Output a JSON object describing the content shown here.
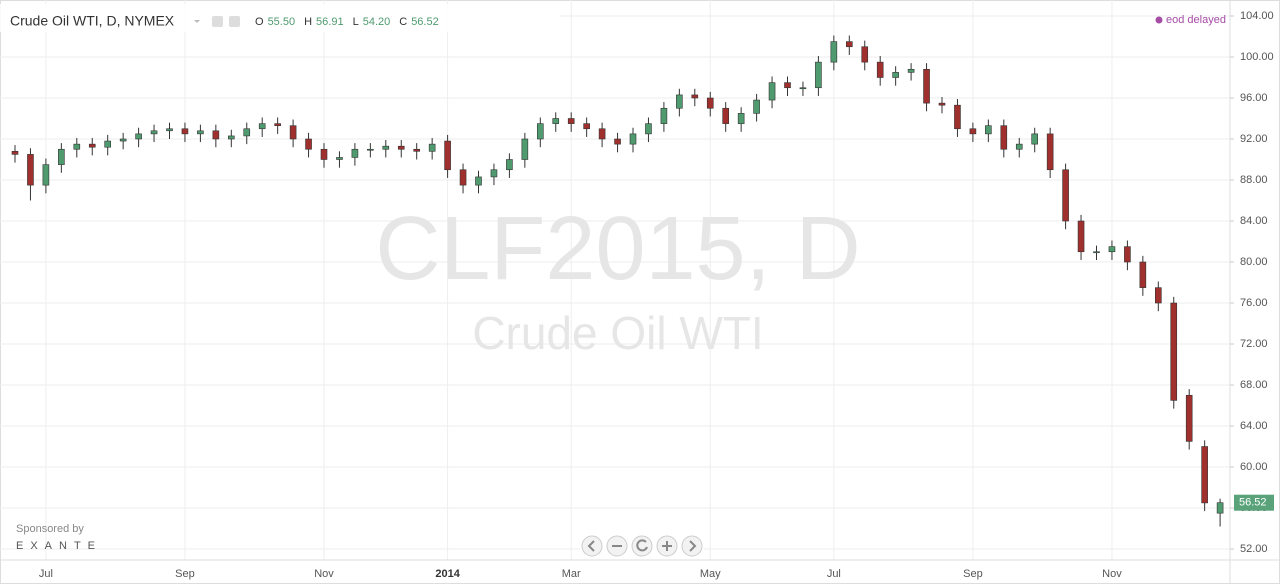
{
  "chart_data": {
    "type": "candlestick",
    "title": "Crude Oil WTI, D, NYMEX",
    "ohlc_legend": [
      {
        "key": "O",
        "text": "55.50"
      },
      {
        "key": "H",
        "text": "56.91"
      },
      {
        "key": "L",
        "text": "54.20"
      },
      {
        "key": "C",
        "text": "56.52"
      }
    ],
    "status": "eod delayed",
    "watermark": "CLF2015, D",
    "watermark_subtitle": "Crude Oil WTI",
    "sponsor_label": "Sponsored by",
    "sponsor": "EXANTE",
    "up_color": "#4f9a6e",
    "down_color": "#a0302e",
    "last_price_color": "#5aa37a",
    "grid": true,
    "categories": [
      null,
      null,
      "Jul",
      null,
      null,
      null,
      null,
      null,
      null,
      null,
      null,
      "Sep",
      null,
      null,
      null,
      null,
      null,
      null,
      null,
      null,
      "Nov",
      null,
      null,
      null,
      null,
      null,
      null,
      null,
      "2014",
      null,
      null,
      null,
      null,
      null,
      null,
      null,
      "Mar",
      null,
      null,
      null,
      null,
      null,
      null,
      null,
      null,
      "May",
      null,
      null,
      null,
      null,
      null,
      null,
      null,
      "Jul",
      null,
      null,
      null,
      null,
      null,
      null,
      null,
      null,
      "Sep",
      null,
      null,
      null,
      null,
      null,
      null,
      null,
      null,
      "Nov",
      null,
      null,
      null,
      null,
      null,
      null,
      null
    ],
    "open": [
      90.8,
      90.5,
      87.5,
      89.5,
      91,
      91.5,
      91.2,
      91.8,
      92,
      92.5,
      92.8,
      93,
      92.5,
      92.8,
      92,
      92.3,
      93,
      93.5,
      93.3,
      92,
      91,
      90,
      90.2,
      91,
      91,
      91.3,
      91,
      90.8,
      91.8,
      89,
      87.5,
      88.3,
      89,
      90,
      92,
      93.5,
      94,
      93.5,
      93,
      92,
      91.5,
      92.5,
      93.5,
      95,
      96.3,
      96,
      95,
      93.5,
      94.5,
      95.8,
      97.5,
      97,
      97,
      99.5,
      101.5,
      101,
      99.5,
      98,
      98.5,
      98.8,
      95.5,
      95.3,
      93,
      92.5,
      93.3,
      91,
      91.5,
      92.5,
      89,
      84,
      81,
      81,
      81.5,
      80,
      77.5,
      76,
      67,
      62,
      55.5
    ],
    "high": [
      91.4,
      91.1,
      90.1,
      91.6,
      92.1,
      92.1,
      92.4,
      92.6,
      93.1,
      93.4,
      93.6,
      93.6,
      93.4,
      93.4,
      92.9,
      93.6,
      94.1,
      94.1,
      93.9,
      92.6,
      91.6,
      90.8,
      91.6,
      91.6,
      91.9,
      91.9,
      91.6,
      92.1,
      92.4,
      89.6,
      88.9,
      89.6,
      90.6,
      92.6,
      94.1,
      94.6,
      94.6,
      94.1,
      93.6,
      92.6,
      93.1,
      94.1,
      95.6,
      96.9,
      96.9,
      96.6,
      95.6,
      95.1,
      96.4,
      98.1,
      98.1,
      97.6,
      100.1,
      102.1,
      102.1,
      101.6,
      100.1,
      99.1,
      99.4,
      99.4,
      96.1,
      95.9,
      93.6,
      93.9,
      93.9,
      92.1,
      93.1,
      93.1,
      89.6,
      84.6,
      81.6,
      82.1,
      82.1,
      80.6,
      78.1,
      76.6,
      67.6,
      62.6,
      56.91
    ],
    "low": [
      89.7,
      86,
      86.7,
      88.7,
      90.2,
      90.4,
      90.4,
      91,
      91.2,
      91.7,
      92,
      91.7,
      91.7,
      91.2,
      91.2,
      91.5,
      92.2,
      92.5,
      91.2,
      90.2,
      89.2,
      89.2,
      89.4,
      90.2,
      90.2,
      90.2,
      90,
      90,
      88.2,
      86.7,
      86.7,
      87.5,
      88.2,
      89.2,
      91.2,
      92.7,
      92.7,
      92.2,
      91.2,
      90.7,
      90.7,
      91.7,
      92.7,
      94.2,
      95.2,
      94.2,
      92.7,
      92.7,
      93.7,
      95,
      96.2,
      96.2,
      96.2,
      98.7,
      100.2,
      98.7,
      97.2,
      97.2,
      97.7,
      94.7,
      94.5,
      92.2,
      91.7,
      91.7,
      90.2,
      90.2,
      90.7,
      88.2,
      83.2,
      80.2,
      80.2,
      80.2,
      79.2,
      76.7,
      75.2,
      65.7,
      61.7,
      55.7,
      54.2
    ],
    "close": [
      90.5,
      87.5,
      89.5,
      91,
      91.5,
      91.2,
      91.8,
      92,
      92.5,
      92.8,
      93,
      92.5,
      92.8,
      92,
      92.3,
      93,
      93.5,
      93.3,
      92,
      91,
      90,
      90.2,
      91,
      91,
      91.3,
      91,
      90.8,
      91.5,
      89,
      87.5,
      88.3,
      89,
      90,
      92,
      93.5,
      94,
      93.5,
      93,
      92,
      91.5,
      92.5,
      93.5,
      95,
      96.3,
      96,
      95,
      93.5,
      94.5,
      95.8,
      97.5,
      97,
      97,
      99.5,
      101.5,
      101,
      99.5,
      98,
      98.5,
      98.8,
      95.5,
      95.3,
      93,
      92.5,
      93.3,
      91,
      91.5,
      92.5,
      89,
      84,
      81,
      81,
      81.5,
      80,
      77.5,
      76,
      66.5,
      62.5,
      56.5,
      56.52
    ],
    "ylim": [
      50.93,
      105.17
    ],
    "yticks": [
      {
        "value": 52,
        "label": "52.00"
      },
      {
        "value": 56,
        "label": "56.00"
      },
      {
        "value": 60,
        "label": "60.00"
      },
      {
        "value": 64,
        "label": "64.00"
      },
      {
        "value": 68,
        "label": "68.00"
      },
      {
        "value": 72,
        "label": "72.00"
      },
      {
        "value": 76,
        "label": "76.00"
      },
      {
        "value": 80,
        "label": "80.00"
      },
      {
        "value": 84,
        "label": "84.00"
      },
      {
        "value": 88,
        "label": "88.00"
      },
      {
        "value": 92,
        "label": "92.00"
      },
      {
        "value": 96,
        "label": "96.00"
      },
      {
        "value": 100,
        "label": "100.00"
      },
      {
        "value": 104,
        "label": "104.00"
      }
    ]
  }
}
